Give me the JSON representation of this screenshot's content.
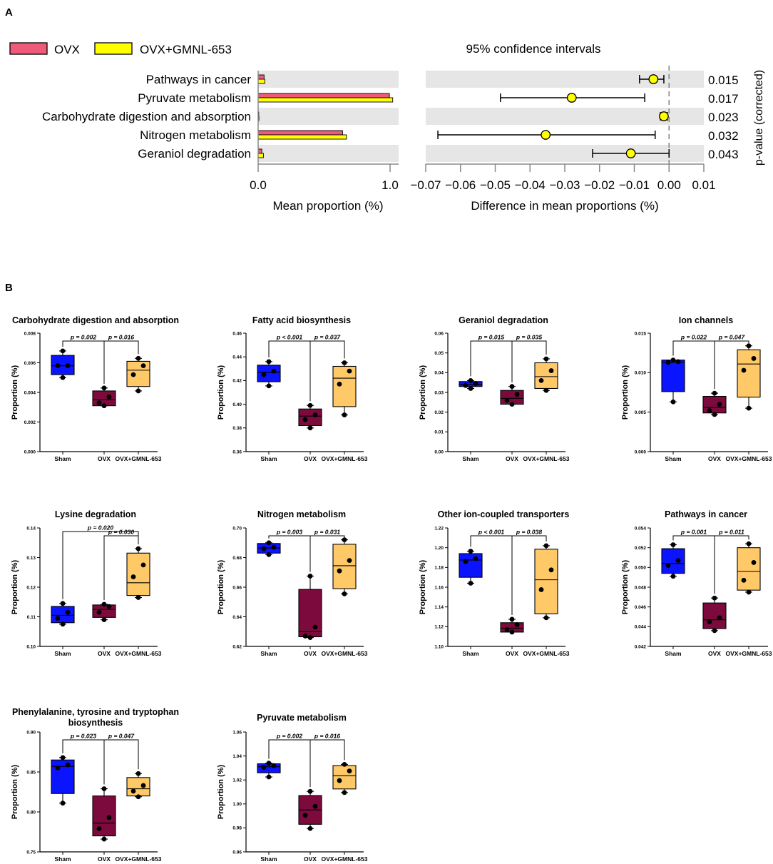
{
  "colors": {
    "ovx_bar": "#ee5a78",
    "gmnl_bar": "#ffff00",
    "row_bg": "#e6e6e6",
    "sham_box": "#0a14ff",
    "ovx_box": "#7d0a3c",
    "gmnl_box": "#ffc968"
  },
  "panel_labels": {
    "a": "A",
    "b": "B"
  },
  "panel_a": {
    "legend": {
      "ovx": "OVX",
      "gmnl": "OVX+GMNL-653"
    },
    "ci_title": "95% confidence intervals",
    "pvalue_label": "p-value (corrected)",
    "chart_data": [
      {
        "type": "bar",
        "orientation": "horizontal",
        "title": "",
        "xlabel": "Mean proportion (%)",
        "xlim": [
          0,
          1.0
        ],
        "xticks": [
          "0.0",
          "1.0"
        ],
        "categories": [
          "Pathways in cancer",
          "Pyruvate metabolism",
          "Carbohydrate digestion and absorption",
          "Nitrogen metabolism",
          "Geraniol degradation"
        ],
        "series": [
          {
            "name": "OVX",
            "values": [
              0.045,
              0.995,
              0.004,
              0.64,
              0.028
            ]
          },
          {
            "name": "OVX+GMNL-653",
            "values": [
              0.05,
              1.02,
              0.006,
              0.67,
              0.04
            ]
          }
        ]
      },
      {
        "type": "scatter",
        "subtype": "difference-with-ci",
        "title": "95% confidence intervals",
        "xlabel": "Difference in mean proportions (%)",
        "xlim": [
          -0.07,
          0.01
        ],
        "xticks": [
          "−0.07",
          "−0.06",
          "−0.05",
          "−0.04",
          "−0.03",
          "−0.02",
          "−0.01",
          "0.00",
          "0.01"
        ],
        "categories": [
          "Pathways in cancer",
          "Pyruvate metabolism",
          "Carbohydrate digestion and absorption",
          "Nitrogen metabolism",
          "Geraniol degradation"
        ],
        "difference": [
          -0.0045,
          -0.028,
          -0.0015,
          -0.0355,
          -0.011
        ],
        "ci_low": [
          -0.0085,
          -0.0485,
          -0.0025,
          -0.0665,
          -0.022
        ],
        "ci_high": [
          -0.0015,
          -0.007,
          -0.0005,
          -0.004,
          0.0
        ],
        "p_values": [
          "0.015",
          "0.017",
          "0.023",
          "0.032",
          "0.043"
        ]
      }
    ]
  },
  "panel_b": {
    "ylabel": "Proportion (%)",
    "groups": [
      "Sham",
      "OVX",
      "OVX+GMNL-653"
    ],
    "chart_data": [
      {
        "type": "box",
        "title": "Carbohydrate digestion and absorption",
        "ylim": [
          0,
          0.008
        ],
        "yticks": [
          "0.000",
          "0.002",
          "0.004",
          "0.006",
          "0.008"
        ],
        "boxes": [
          {
            "min": 0.005,
            "q1": 0.0052,
            "median": 0.0058,
            "q3": 0.0065,
            "max": 0.0068
          },
          {
            "min": 0.0031,
            "q1": 0.0031,
            "median": 0.0035,
            "q3": 0.0041,
            "max": 0.0043
          },
          {
            "min": 0.0041,
            "q1": 0.0044,
            "median": 0.0055,
            "q3": 0.0061,
            "max": 0.0063
          }
        ],
        "points": [
          [
            0.005,
            0.0058,
            0.0058,
            0.0068
          ],
          [
            0.0031,
            0.0033,
            0.0037,
            0.0043
          ],
          [
            0.0041,
            0.0052,
            0.0058,
            0.0063
          ]
        ],
        "comparisons": [
          {
            "from": 0,
            "to": 1,
            "label": "p = 0.002"
          },
          {
            "from": 1,
            "to": 2,
            "label": "p = 0.016"
          }
        ]
      },
      {
        "type": "box",
        "title": "Fatty acid biosynthesis",
        "ylim": [
          0.36,
          0.46
        ],
        "yticks": [
          "0.36",
          "0.38",
          "0.40",
          "0.42",
          "0.44",
          "0.46"
        ],
        "boxes": [
          {
            "min": 0.4155,
            "q1": 0.419,
            "median": 0.427,
            "q3": 0.433,
            "max": 0.436
          },
          {
            "min": 0.38,
            "q1": 0.382,
            "median": 0.39,
            "q3": 0.396,
            "max": 0.399
          },
          {
            "min": 0.391,
            "q1": 0.398,
            "median": 0.422,
            "q3": 0.432,
            "max": 0.435
          }
        ],
        "points": [
          [
            0.4155,
            0.425,
            0.428,
            0.436
          ],
          [
            0.38,
            0.387,
            0.391,
            0.399
          ],
          [
            0.391,
            0.417,
            0.428,
            0.435
          ]
        ],
        "comparisons": [
          {
            "from": 0,
            "to": 1,
            "label": "p < 0.001"
          },
          {
            "from": 1,
            "to": 2,
            "label": "p = 0.037"
          }
        ]
      },
      {
        "type": "box",
        "title": "Geraniol degradation",
        "ylim": [
          0,
          0.06
        ],
        "yticks": [
          "0.00",
          "0.01",
          "0.02",
          "0.03",
          "0.04",
          "0.05",
          "0.06"
        ],
        "boxes": [
          {
            "min": 0.032,
            "q1": 0.033,
            "median": 0.034,
            "q3": 0.0355,
            "max": 0.036
          },
          {
            "min": 0.024,
            "q1": 0.024,
            "median": 0.027,
            "q3": 0.031,
            "max": 0.033
          },
          {
            "min": 0.031,
            "q1": 0.032,
            "median": 0.038,
            "q3": 0.045,
            "max": 0.047
          }
        ],
        "points": [
          [
            0.032,
            0.0335,
            0.0345,
            0.036
          ],
          [
            0.024,
            0.026,
            0.029,
            0.033
          ],
          [
            0.031,
            0.036,
            0.041,
            0.047
          ]
        ],
        "comparisons": [
          {
            "from": 0,
            "to": 1,
            "label": "p = 0.015"
          },
          {
            "from": 1,
            "to": 2,
            "label": "p = 0.035"
          }
        ]
      },
      {
        "type": "box",
        "title": "Ion channels",
        "ylim": [
          0,
          0.015
        ],
        "yticks": [
          "0.000",
          "0.005",
          "0.010",
          "0.015"
        ],
        "boxes": [
          {
            "min": 0.0063,
            "q1": 0.0076,
            "median": 0.0113,
            "q3": 0.0116,
            "max": 0.0116
          },
          {
            "min": 0.0047,
            "q1": 0.0049,
            "median": 0.0056,
            "q3": 0.007,
            "max": 0.0074
          },
          {
            "min": 0.0055,
            "q1": 0.0069,
            "median": 0.0111,
            "q3": 0.0129,
            "max": 0.0134
          }
        ],
        "points": [
          [
            0.0063,
            0.0113,
            0.0114,
            0.0116
          ],
          [
            0.0047,
            0.0052,
            0.006,
            0.0074
          ],
          [
            0.0055,
            0.0103,
            0.0118,
            0.0134
          ]
        ],
        "comparisons": [
          {
            "from": 0,
            "to": 1,
            "label": "p = 0.022"
          },
          {
            "from": 1,
            "to": 2,
            "label": "p = 0.047"
          }
        ]
      },
      {
        "type": "box",
        "title": "Lysine degradation",
        "ylim": [
          0.1,
          0.14
        ],
        "yticks": [
          "0.10",
          "0.11",
          "0.12",
          "0.13",
          "0.14"
        ],
        "boxes": [
          {
            "min": 0.1075,
            "q1": 0.108,
            "median": 0.1105,
            "q3": 0.1135,
            "max": 0.1145
          },
          {
            "min": 0.109,
            "q1": 0.1098,
            "median": 0.1125,
            "q3": 0.114,
            "max": 0.1142
          },
          {
            "min": 0.1165,
            "q1": 0.1172,
            "median": 0.1215,
            "q3": 0.1315,
            "max": 0.133
          }
        ],
        "points": [
          [
            0.1075,
            0.1095,
            0.1115,
            0.1145
          ],
          [
            0.109,
            0.1115,
            0.1135,
            0.1142
          ],
          [
            0.1165,
            0.1235,
            0.1275,
            0.133
          ]
        ],
        "comparisons": [
          {
            "from": 1,
            "to": 2,
            "label": "p = 0.030"
          },
          {
            "from": 0,
            "to": 2,
            "label": "p = 0.020"
          }
        ]
      },
      {
        "type": "box",
        "title": "Nitrogen metabolism",
        "ylim": [
          0.62,
          0.7
        ],
        "yticks": [
          "0.62",
          "0.64",
          "0.66",
          "0.68",
          "0.70"
        ],
        "boxes": [
          {
            "min": 0.682,
            "q1": 0.683,
            "median": 0.6865,
            "q3": 0.6895,
            "max": 0.69
          },
          {
            "min": 0.626,
            "q1": 0.6265,
            "median": 0.63,
            "q3": 0.6585,
            "max": 0.6675
          },
          {
            "min": 0.6555,
            "q1": 0.659,
            "median": 0.6745,
            "q3": 0.689,
            "max": 0.692
          }
        ],
        "points": [
          [
            0.682,
            0.686,
            0.687,
            0.69
          ],
          [
            0.626,
            0.627,
            0.633,
            0.6675
          ],
          [
            0.6555,
            0.671,
            0.678,
            0.692
          ]
        ],
        "comparisons": [
          {
            "from": 0,
            "to": 1,
            "label": "p = 0.003"
          },
          {
            "from": 1,
            "to": 2,
            "label": "p = 0.031"
          }
        ]
      },
      {
        "type": "box",
        "title": "Other ion-coupled transporters",
        "ylim": [
          1.1,
          1.22
        ],
        "yticks": [
          "1.10",
          "1.12",
          "1.14",
          "1.16",
          "1.18",
          "1.20",
          "1.22"
        ],
        "boxes": [
          {
            "min": 1.164,
            "q1": 1.17,
            "median": 1.1875,
            "q3": 1.194,
            "max": 1.1965
          },
          {
            "min": 1.1145,
            "q1": 1.1145,
            "median": 1.1185,
            "q3": 1.124,
            "max": 1.1275
          },
          {
            "min": 1.129,
            "q1": 1.133,
            "median": 1.1675,
            "q3": 1.1985,
            "max": 1.202
          }
        ],
        "points": [
          [
            1.164,
            1.186,
            1.189,
            1.1965
          ],
          [
            1.1145,
            1.117,
            1.122,
            1.1275
          ],
          [
            1.129,
            1.1575,
            1.1775,
            1.202
          ]
        ],
        "comparisons": [
          {
            "from": 0,
            "to": 1,
            "label": "p < 0.001"
          },
          {
            "from": 1,
            "to": 2,
            "label": "p = 0.038"
          }
        ]
      },
      {
        "type": "box",
        "title": "Pathways in cancer",
        "ylim": [
          0.042,
          0.054
        ],
        "yticks": [
          "0.042",
          "0.044",
          "0.046",
          "0.048",
          "0.050",
          "0.052",
          "0.054"
        ],
        "boxes": [
          {
            "min": 0.0491,
            "q1": 0.0494,
            "median": 0.0504,
            "q3": 0.0519,
            "max": 0.0523
          },
          {
            "min": 0.0436,
            "q1": 0.0438,
            "median": 0.0447,
            "q3": 0.0464,
            "max": 0.0469
          },
          {
            "min": 0.0475,
            "q1": 0.0477,
            "median": 0.0496,
            "q3": 0.052,
            "max": 0.0524
          }
        ],
        "points": [
          [
            0.0491,
            0.0502,
            0.0507,
            0.0523
          ],
          [
            0.0436,
            0.0445,
            0.0449,
            0.0469
          ],
          [
            0.0475,
            0.0487,
            0.0505,
            0.0524
          ]
        ],
        "comparisons": [
          {
            "from": 0,
            "to": 1,
            "label": "p = 0.001"
          },
          {
            "from": 1,
            "to": 2,
            "label": "p = 0.011"
          }
        ]
      },
      {
        "type": "box",
        "title": "Phenylalanine, tyrosine and tryptophan biosynthesis",
        "ylim": [
          0.75,
          0.9
        ],
        "yticks": [
          "0.75",
          "0.80",
          "0.85",
          "0.90"
        ],
        "boxes": [
          {
            "min": 0.811,
            "q1": 0.823,
            "median": 0.857,
            "q3": 0.865,
            "max": 0.868
          },
          {
            "min": 0.766,
            "q1": 0.77,
            "median": 0.786,
            "q3": 0.82,
            "max": 0.829
          },
          {
            "min": 0.819,
            "q1": 0.82,
            "median": 0.829,
            "q3": 0.843,
            "max": 0.848
          }
        ],
        "points": [
          [
            0.811,
            0.855,
            0.859,
            0.868
          ],
          [
            0.766,
            0.779,
            0.793,
            0.829
          ],
          [
            0.819,
            0.826,
            0.833,
            0.848
          ]
        ],
        "comparisons": [
          {
            "from": 0,
            "to": 1,
            "label": "p = 0.023"
          },
          {
            "from": 1,
            "to": 2,
            "label": "p = 0.047"
          }
        ]
      },
      {
        "type": "box",
        "title": "Pyruvate metabolism",
        "ylim": [
          0.96,
          1.06
        ],
        "yticks": [
          "0.96",
          "0.98",
          "1.00",
          "1.02",
          "1.04",
          "1.06"
        ],
        "boxes": [
          {
            "min": 1.0225,
            "q1": 1.026,
            "median": 1.031,
            "q3": 1.0335,
            "max": 1.034
          },
          {
            "min": 0.9795,
            "q1": 0.983,
            "median": 0.995,
            "q3": 1.007,
            "max": 1.0105
          },
          {
            "min": 1.0095,
            "q1": 1.0125,
            "median": 1.0235,
            "q3": 1.032,
            "max": 1.033
          }
        ],
        "points": [
          [
            1.0225,
            1.0305,
            1.032,
            1.034
          ],
          [
            0.9795,
            0.9905,
            0.998,
            1.0105
          ],
          [
            1.0095,
            1.0195,
            1.0275,
            1.033
          ]
        ],
        "comparisons": [
          {
            "from": 0,
            "to": 1,
            "label": "p = 0.002"
          },
          {
            "from": 1,
            "to": 2,
            "label": "p = 0.016"
          }
        ]
      }
    ]
  }
}
